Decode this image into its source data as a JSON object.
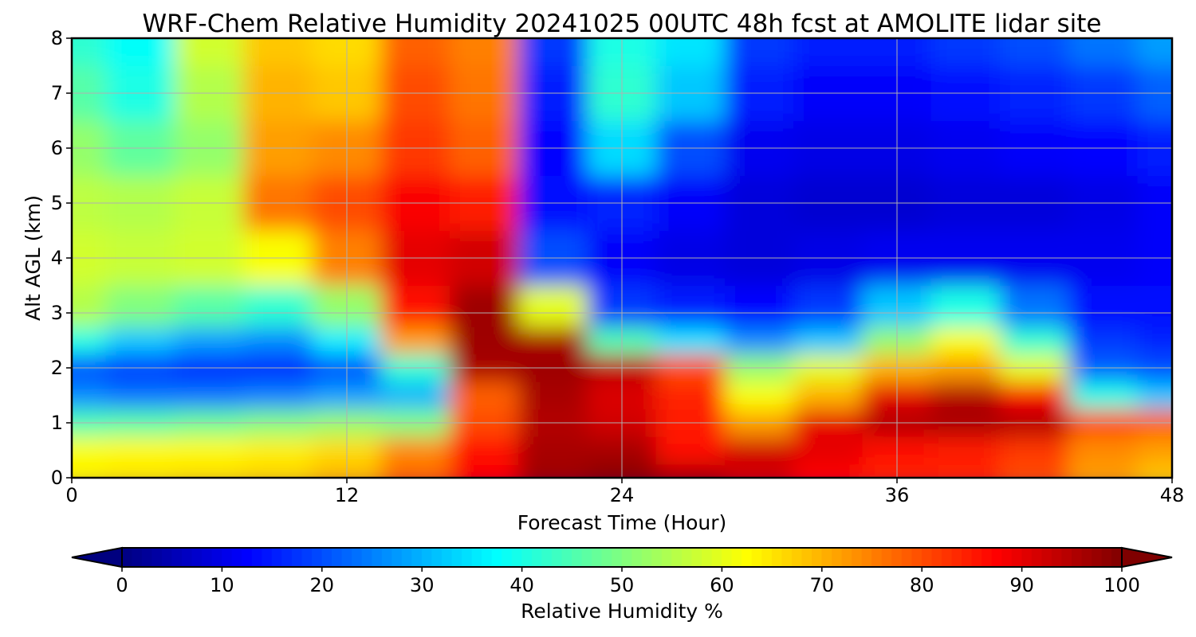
{
  "chart_data": {
    "type": "heatmap",
    "title": "WRF-Chem Relative Humidity 20241025 00UTC 48h fcst at AMOLITE lidar site",
    "xlabel": "Forecast Time (Hour)",
    "ylabel": "Alt AGL (km)",
    "xlim": [
      0,
      48
    ],
    "ylim": [
      0,
      8
    ],
    "x_ticks": [
      "0",
      "12",
      "24",
      "36",
      "48"
    ],
    "y_ticks": [
      "0",
      "1",
      "2",
      "3",
      "4",
      "5",
      "6",
      "7",
      "8"
    ],
    "grid": true,
    "colormap": "jet",
    "colorbar": {
      "label": "Relative Humidity %",
      "range": [
        0,
        100
      ],
      "ticks": [
        "0",
        "10",
        "20",
        "30",
        "40",
        "50",
        "60",
        "70",
        "80",
        "90",
        "100"
      ],
      "extend": "both",
      "orientation": "horizontal"
    },
    "x": [
      0,
      3,
      6,
      9,
      12,
      15,
      18,
      21,
      24,
      27,
      30,
      33,
      36,
      39,
      42,
      45,
      48
    ],
    "y": [
      0,
      0.5,
      1,
      1.5,
      2,
      2.5,
      3,
      4,
      5,
      6,
      7,
      8
    ],
    "z": [
      [
        64,
        65,
        66,
        67,
        70,
        78,
        88,
        97,
        99,
        96,
        92,
        87,
        84,
        84,
        80,
        72,
        68
      ],
      [
        62,
        63,
        63,
        64,
        66,
        74,
        86,
        96,
        96,
        86,
        92,
        90,
        86,
        85,
        82,
        74,
        72
      ],
      [
        45,
        46,
        48,
        50,
        52,
        50,
        80,
        95,
        92,
        85,
        72,
        90,
        95,
        96,
        95,
        80,
        78
      ],
      [
        26,
        24,
        24,
        25,
        28,
        30,
        78,
        96,
        91,
        84,
        62,
        70,
        90,
        95,
        88,
        40,
        32
      ],
      [
        20,
        18,
        16,
        16,
        20,
        42,
        96,
        97,
        94,
        80,
        52,
        60,
        70,
        72,
        60,
        22,
        20
      ],
      [
        40,
        32,
        28,
        26,
        36,
        72,
        97,
        96,
        45,
        35,
        26,
        32,
        52,
        62,
        42,
        18,
        16
      ],
      [
        55,
        50,
        46,
        42,
        52,
        86,
        97,
        60,
        18,
        15,
        13,
        18,
        32,
        40,
        24,
        14,
        14
      ],
      [
        58,
        57,
        58,
        62,
        75,
        90,
        92,
        20,
        12,
        10,
        9,
        10,
        11,
        11,
        11,
        11,
        12
      ],
      [
        56,
        55,
        57,
        76,
        80,
        88,
        85,
        14,
        16,
        12,
        9,
        8,
        8,
        9,
        9,
        10,
        12
      ],
      [
        52,
        47,
        52,
        72,
        74,
        82,
        78,
        13,
        34,
        20,
        11,
        10,
        10,
        11,
        12,
        13,
        15
      ],
      [
        46,
        40,
        55,
        70,
        68,
        80,
        76,
        15,
        42,
        32,
        15,
        12,
        12,
        14,
        16,
        18,
        22
      ],
      [
        42,
        38,
        58,
        68,
        66,
        78,
        75,
        18,
        40,
        35,
        18,
        15,
        15,
        18,
        20,
        24,
        28
      ]
    ]
  }
}
